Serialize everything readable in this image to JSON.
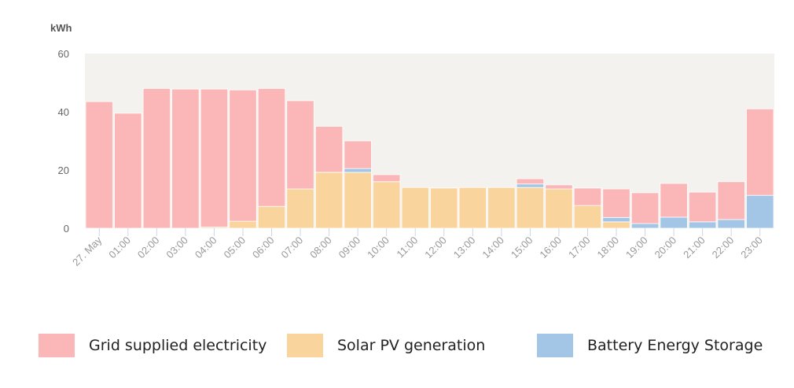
{
  "chart_data": {
    "type": "bar",
    "stacked": true,
    "ylabel": "kWh",
    "ylim": [
      0,
      60
    ],
    "yticks": [
      "0",
      "20",
      "40",
      "60"
    ],
    "grid": false,
    "legend_position": "bottom",
    "categories": [
      "27. May",
      "01:00",
      "02:00",
      "03:00",
      "04:00",
      "05:00",
      "06:00",
      "07:00",
      "08:00",
      "09:00",
      "10:00",
      "11:00",
      "12:00",
      "13:00",
      "14:00",
      "15:00",
      "16:00",
      "17:00",
      "18:00",
      "19:00",
      "20:00",
      "21:00",
      "22:00",
      "23:00"
    ],
    "series": [
      {
        "name": "Solar PV generation",
        "color": "#f9d49d",
        "values": [
          0,
          0,
          0,
          0,
          0.4,
          2.4,
          7.5,
          13.5,
          19.2,
          19.2,
          16,
          14,
          13.8,
          14,
          14,
          14,
          13.5,
          7.8,
          2.2,
          0,
          0,
          0,
          0,
          0
        ]
      },
      {
        "name": "Battery Energy Storage",
        "color": "#a3c6e6",
        "values": [
          0,
          0,
          0,
          0,
          0,
          0,
          0,
          0,
          0,
          1.3,
          0,
          0,
          0,
          0,
          0,
          1.2,
          0,
          0,
          1.5,
          1.6,
          3.8,
          2.2,
          3,
          11.3
        ]
      },
      {
        "name": "Grid supplied electricity",
        "color": "#fbb7b7",
        "values": [
          43.5,
          39.5,
          48,
          47.8,
          47.4,
          45.1,
          40.5,
          30.3,
          15.8,
          9.5,
          2.4,
          0,
          0,
          0,
          0,
          1.8,
          1.4,
          6,
          9.8,
          10.6,
          11.6,
          10.2,
          13,
          29.7
        ]
      }
    ],
    "plot_background": "#f4f2ef"
  },
  "legend": [
    {
      "label": "Grid supplied electricity",
      "color": "#fbb7b7"
    },
    {
      "label": "Solar PV generation",
      "color": "#f9d49d"
    },
    {
      "label": "Battery Energy Storage",
      "color": "#a3c6e6"
    }
  ]
}
